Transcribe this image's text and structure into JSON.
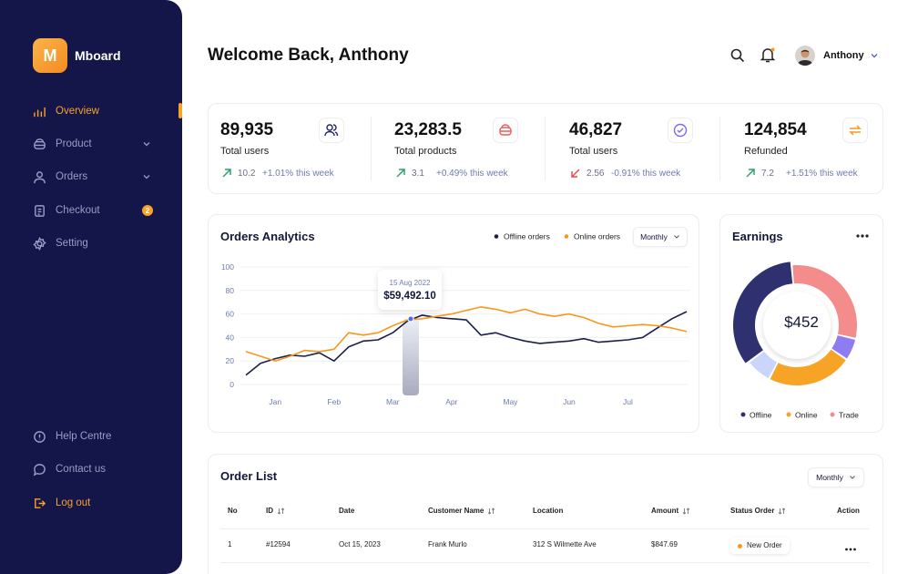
{
  "sidebar": {
    "logo": "M",
    "brand": "Mboard",
    "nav": [
      "Overview",
      "Product",
      "Orders",
      "Checkout",
      "Setting"
    ],
    "active": 0,
    "checkout_badge": 2,
    "footer": [
      "Help Centre",
      "Contact us",
      "Log out"
    ]
  },
  "header": {
    "title": "Welcome Back, Anthony",
    "user": "Anthony"
  },
  "stats": [
    {
      "value": "89,935",
      "label": "Total users",
      "change": 10.2,
      "note": "+1.01% this week",
      "trend": "up"
    },
    {
      "value": "23,283.5",
      "label": "Total products",
      "change": 3.1,
      "note": "+0.49% this week",
      "trend": "up"
    },
    {
      "value": "46,827",
      "label": "Total users",
      "change": 2.56,
      "note": "-0.91% this week",
      "trend": "down"
    },
    {
      "value": "124,854",
      "label": "Refunded",
      "change": 7.2,
      "note": "+1.51% this week",
      "trend": "up"
    }
  ],
  "orders_chart": {
    "type": "line",
    "title": "Orders Analytics",
    "period": "Monthly",
    "categories": [
      null,
      null,
      "Jan",
      null,
      null,
      null,
      "Feb",
      null,
      null,
      null,
      "Mar",
      null,
      null,
      null,
      "Apr",
      null,
      null,
      null,
      "May",
      null,
      null,
      null,
      "Jun",
      null,
      null,
      null,
      "Jul",
      null,
      null,
      null,
      null
    ],
    "series": [
      {
        "name": "Offline orders",
        "color": "#1c1f4a",
        "values": [
          8,
          18,
          22,
          25,
          24,
          27,
          20,
          32,
          37,
          38,
          44,
          54,
          59,
          57,
          56,
          55,
          42,
          44,
          40,
          37,
          35,
          36,
          37,
          39,
          36,
          37,
          38,
          40,
          48,
          56,
          62
        ]
      },
      {
        "name": "Online orders",
        "color": "#f7981d",
        "values": [
          28,
          24,
          20,
          24,
          29,
          28,
          30,
          44,
          42,
          44,
          50,
          55,
          56,
          58,
          60,
          63,
          66,
          64,
          61,
          64,
          60,
          58,
          60,
          57,
          52,
          49,
          50,
          51,
          50,
          48,
          45
        ]
      }
    ],
    "ylim": [
      0,
      100
    ],
    "yticks": [
      0,
      20,
      40,
      60,
      80,
      100
    ],
    "grid": true,
    "tooltip": {
      "date": "15 Aug 2022",
      "value": "$59,492.10"
    }
  },
  "earnings_chart": {
    "type": "donut",
    "title": "Earnings",
    "center_label": "$452",
    "categories": [
      "Offline",
      null,
      "Online",
      null,
      "Trade"
    ],
    "values": [
      34,
      7,
      23,
      6,
      30
    ],
    "colors": [
      "#2e3070",
      "#c9d5fb",
      "#f7a325",
      "#8f7cf2",
      "#f58c8c"
    ]
  },
  "order_list": {
    "title": "Order List",
    "period": "Monthly",
    "columns": [
      {
        "label": "No",
        "sortable": false
      },
      {
        "label": "ID",
        "sortable": true
      },
      {
        "label": "Date",
        "sortable": false
      },
      {
        "label": "Customer Name",
        "sortable": true
      },
      {
        "label": "Location",
        "sortable": false
      },
      {
        "label": "Amount",
        "sortable": true
      },
      {
        "label": "Status Order",
        "sortable": true
      },
      {
        "label": "Action",
        "sortable": false
      }
    ],
    "rows": [
      [
        "1",
        "#12594",
        "Oct 15, 2023",
        "Frank Murlo",
        "312 S Wilmette Ave",
        "$847.69",
        "New Order"
      ]
    ]
  }
}
